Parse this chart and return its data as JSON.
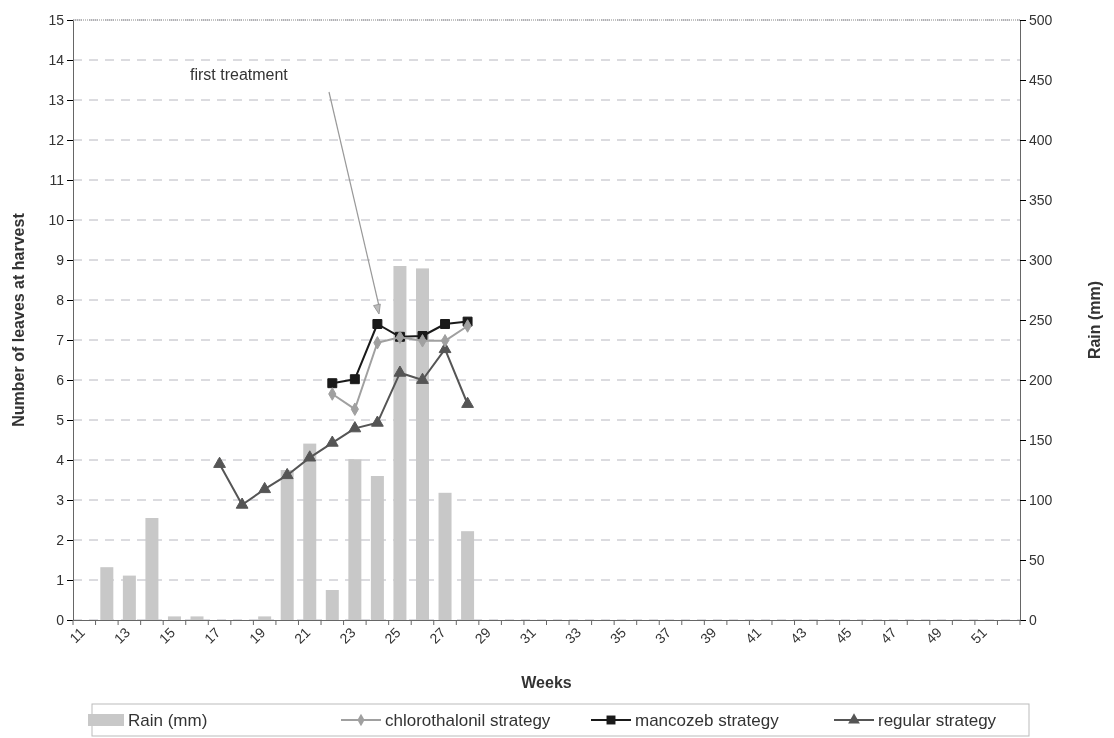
{
  "chart_data": {
    "type": "line",
    "xlabel": "Weeks",
    "ylabel": "Number of leaves at harvest",
    "y2label": "Rain (mm)",
    "categories": [
      "11",
      null,
      "13",
      null,
      "15",
      null,
      "17",
      null,
      "19",
      null,
      "21",
      null,
      "23",
      null,
      "25",
      null,
      "27",
      null,
      "29",
      null,
      "31",
      null,
      "33",
      null,
      "35",
      null,
      "37",
      null,
      "39",
      null,
      "41",
      null,
      "43",
      null,
      "45",
      null,
      "47",
      null,
      "49",
      null,
      "51",
      null
    ],
    "series": [
      {
        "name": "Rain (mm)",
        "type": "bar",
        "axis": "y2",
        "color": "#c8c8c8",
        "values": [
          null,
          44,
          37,
          85,
          3,
          3,
          null,
          null,
          3,
          125,
          147,
          25,
          134,
          120,
          295,
          293,
          106,
          74,
          null,
          null,
          null,
          null,
          null,
          null,
          null,
          null,
          null,
          null,
          null,
          null,
          null,
          null,
          null,
          null,
          null,
          null,
          null,
          null,
          null,
          null,
          null,
          null
        ]
      },
      {
        "name": "chlorothalonil strategy",
        "color": "#a0a0a0",
        "marker": "diamond",
        "values": [
          null,
          null,
          null,
          null,
          null,
          null,
          null,
          null,
          null,
          null,
          null,
          5.65,
          5.27,
          6.93,
          7.07,
          6.98,
          6.98,
          7.35,
          null,
          null,
          null,
          null,
          null,
          null,
          null,
          null,
          null,
          null,
          null,
          null,
          null,
          null,
          null,
          null,
          null,
          null,
          null,
          null,
          null,
          null,
          null,
          null
        ]
      },
      {
        "name": "mancozeb strategy",
        "color": "#1a1a1a",
        "marker": "square",
        "values": [
          null,
          null,
          null,
          null,
          null,
          null,
          null,
          null,
          null,
          null,
          null,
          5.92,
          6.02,
          7.4,
          7.08,
          7.1,
          7.4,
          7.46,
          null,
          null,
          null,
          null,
          null,
          null,
          null,
          null,
          null,
          null,
          null,
          null,
          null,
          null,
          null,
          null,
          null,
          null,
          null,
          null,
          null,
          null,
          null,
          null
        ]
      },
      {
        "name": "regular strategy",
        "color": "#555555",
        "marker": "triangle",
        "values": [
          null,
          null,
          null,
          null,
          null,
          null,
          3.9,
          2.88,
          3.27,
          3.62,
          4.06,
          4.43,
          4.79,
          4.93,
          6.18,
          6.0,
          6.77,
          5.4,
          null,
          null,
          null,
          null,
          null,
          null,
          null,
          null,
          null,
          null,
          null,
          null,
          null,
          null,
          null,
          null,
          null,
          null,
          null,
          null,
          null,
          null,
          null,
          null
        ]
      }
    ],
    "ylim": [
      0,
      15
    ],
    "yticks": [
      0,
      1,
      2,
      3,
      4,
      5,
      6,
      7,
      8,
      9,
      10,
      11,
      12,
      13,
      14,
      15
    ],
    "y2lim": [
      0,
      500
    ],
    "y2ticks": [
      0,
      50,
      100,
      150,
      200,
      250,
      300,
      350,
      400,
      450,
      500
    ],
    "grid": "y",
    "legend": "bottom",
    "annotations": [
      "first treatment"
    ]
  }
}
